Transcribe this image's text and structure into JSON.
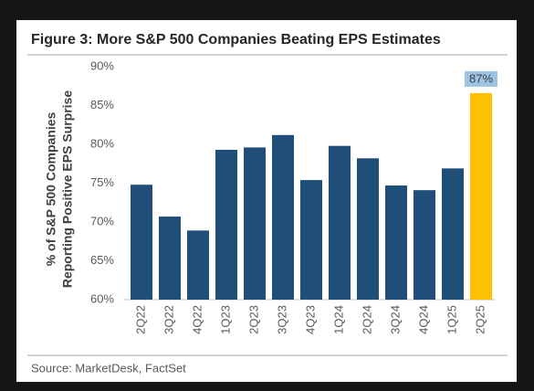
{
  "chart_data": {
    "type": "bar",
    "title": "Figure 3: More S&P 500 Companies Beating EPS Estimates",
    "y_label": [
      "% of S&P 500 Companies",
      "Reporting Positive EPS Surprise"
    ],
    "categories": [
      "2Q22",
      "3Q22",
      "4Q22",
      "1Q23",
      "2Q23",
      "3Q23",
      "4Q23",
      "1Q24",
      "2Q24",
      "3Q24",
      "4Q24",
      "1Q25",
      "2Q25"
    ],
    "values": [
      74.8,
      70.7,
      68.9,
      79.3,
      79.6,
      81.2,
      75.4,
      79.8,
      78.2,
      74.7,
      74.1,
      76.9,
      86.6
    ],
    "value_labels": [
      null,
      null,
      null,
      null,
      null,
      null,
      null,
      null,
      null,
      null,
      null,
      null,
      "87%"
    ],
    "colors": [
      "#1f4e79",
      "#1f4e79",
      "#1f4e79",
      "#1f4e79",
      "#1f4e79",
      "#1f4e79",
      "#1f4e79",
      "#1f4e79",
      "#1f4e79",
      "#1f4e79",
      "#1f4e79",
      "#1f4e79",
      "#ffc000"
    ],
    "ylim": [
      60,
      90
    ],
    "yticks": [
      {
        "value": 60,
        "label": "60%"
      },
      {
        "value": 65,
        "label": "65%"
      },
      {
        "value": 70,
        "label": "70%"
      },
      {
        "value": 75,
        "label": "75%"
      },
      {
        "value": 80,
        "label": "80%"
      },
      {
        "value": 85,
        "label": "85%"
      },
      {
        "value": 90,
        "label": "90%"
      }
    ],
    "grid": false,
    "source": "Source: MarketDesk, FactSet"
  }
}
